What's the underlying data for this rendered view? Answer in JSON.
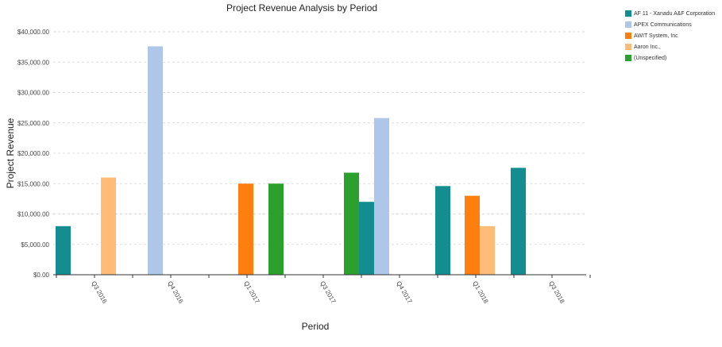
{
  "chart_data": {
    "type": "bar",
    "title": "Project Revenue Analysis by Period",
    "xlabel": "Period",
    "ylabel": "Project Revenue",
    "ylim": [
      0,
      40000
    ],
    "yticks": [
      "$0.00",
      "$5,000.00",
      "$10,000.00",
      "$15,000.00",
      "$20,000.00",
      "$25,000.00",
      "$30,000.00",
      "$35,000.00",
      "$40,000.00"
    ],
    "categories": [
      "Q3 2016",
      "Q4 2016",
      "Q1 2017",
      "Q3 2017",
      "Q4 2017",
      "Q1 2018",
      "Q3 2018"
    ],
    "grid": true,
    "legend_position": "top-right",
    "series": [
      {
        "name": "AF 11 - Xanadu A&F Corporation",
        "color": "#138d90"
      },
      {
        "name": "APEX Communications",
        "color": "#aec7e8"
      },
      {
        "name": "AWIT System, Inc",
        "color": "#ff7f0e"
      },
      {
        "name": "Aaron Inc.,",
        "color": "#ffbb78"
      },
      {
        "name": "(Unspecified)",
        "color": "#2ca02c"
      }
    ],
    "bars": [
      {
        "series": 0,
        "value": 8000
      },
      {
        "series": 3,
        "value": 16000
      },
      {
        "series": 1,
        "value": 37600
      },
      {
        "series": 2,
        "value": 15000
      },
      {
        "series": 4,
        "value": 15000
      },
      {
        "series": 4,
        "value": 16800
      },
      {
        "series": 0,
        "value": 12000
      },
      {
        "series": 1,
        "value": 25800
      },
      {
        "series": 0,
        "value": 14600
      },
      {
        "series": 2,
        "value": 13000
      },
      {
        "series": 3,
        "value": 8000
      },
      {
        "series": 0,
        "value": 17600
      }
    ]
  }
}
